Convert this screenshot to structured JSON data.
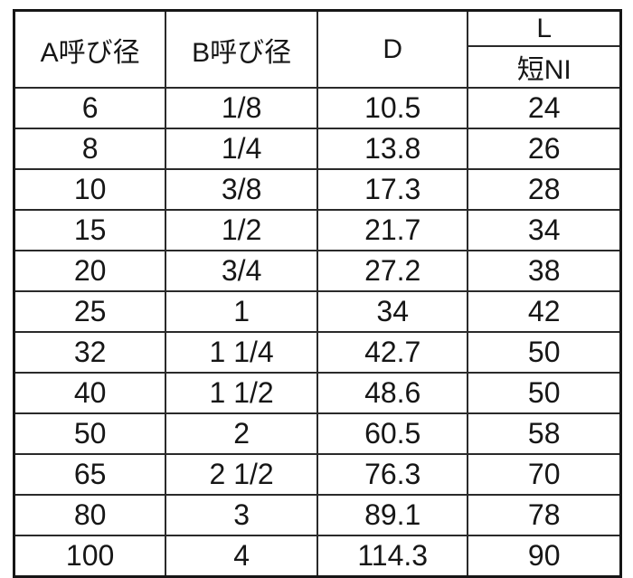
{
  "table": {
    "headers": {
      "a": "A呼び径",
      "b": "B呼び径",
      "d": "D",
      "l": "L",
      "l_sub": "短NI"
    },
    "rows": [
      [
        "6",
        "1/8",
        "10.5",
        "24"
      ],
      [
        "8",
        "1/4",
        "13.8",
        "26"
      ],
      [
        "10",
        "3/8",
        "17.3",
        "28"
      ],
      [
        "15",
        "1/2",
        "21.7",
        "34"
      ],
      [
        "20",
        "3/4",
        "27.2",
        "38"
      ],
      [
        "25",
        "1",
        "34",
        "42"
      ],
      [
        "32",
        "1 1/4",
        "42.7",
        "50"
      ],
      [
        "40",
        "1 1/2",
        "48.6",
        "50"
      ],
      [
        "50",
        "2",
        "60.5",
        "58"
      ],
      [
        "65",
        "2 1/2",
        "76.3",
        "70"
      ],
      [
        "80",
        "3",
        "89.1",
        "78"
      ],
      [
        "100",
        "4",
        "114.3",
        "90"
      ]
    ],
    "colors": {
      "border": "#2a2a2a",
      "outer_border": "#161616",
      "text": "#161616",
      "background": "#ffffff"
    }
  }
}
